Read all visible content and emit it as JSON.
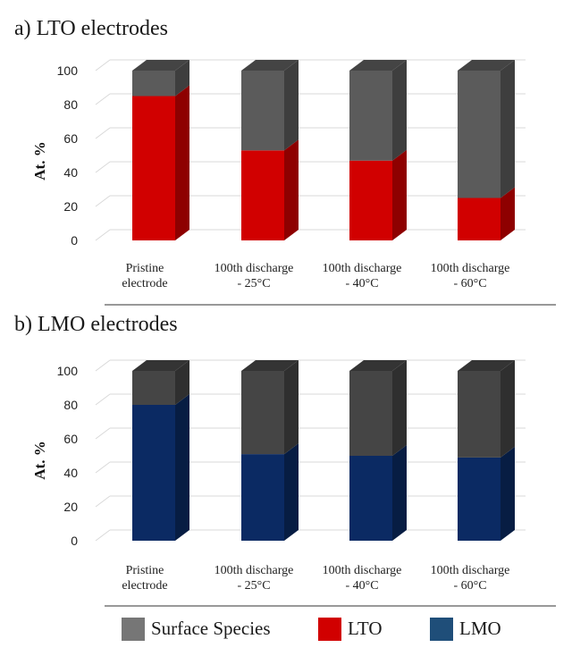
{
  "chart_data": [
    {
      "type": "bar",
      "stacked": true,
      "title": "a) LTO electrodes",
      "ylabel": "At. %",
      "ylim": [
        0,
        100
      ],
      "yticks": [
        0,
        20,
        40,
        60,
        80,
        100
      ],
      "categories": [
        [
          "Pristine",
          "electrode"
        ],
        [
          "100th discharge",
          "- 25°C"
        ],
        [
          "100th discharge",
          "- 40°C"
        ],
        [
          "100th discharge",
          "- 60°C"
        ]
      ],
      "series": [
        {
          "name": "LTO",
          "color": "#d10000",
          "values": [
            85,
            53,
            47,
            25
          ]
        },
        {
          "name": "Surface Species",
          "color": "#5b5b5b",
          "values": [
            15,
            47,
            53,
            75
          ]
        }
      ]
    },
    {
      "type": "bar",
      "stacked": true,
      "title": "b) LMO electrodes",
      "ylabel": "At. %",
      "ylim": [
        0,
        100
      ],
      "yticks": [
        0,
        20,
        40,
        60,
        80,
        100
      ],
      "categories": [
        [
          "Pristine",
          "electrode"
        ],
        [
          "100th discharge",
          "- 25°C"
        ],
        [
          "100th discharge",
          "- 40°C"
        ],
        [
          "100th discharge",
          "- 60°C"
        ]
      ],
      "series": [
        {
          "name": "LMO",
          "color": "#0b2a63",
          "values": [
            80,
            51,
            50,
            49
          ]
        },
        {
          "name": "Surface Species",
          "color": "#454545",
          "values": [
            20,
            49,
            50,
            51
          ]
        }
      ]
    }
  ],
  "legend": {
    "position": "bottom",
    "items": [
      {
        "label": "Surface Species",
        "color": "#767676"
      },
      {
        "label": "LTO",
        "color": "#d10000"
      },
      {
        "label": "LMO",
        "color": "#1f4e79"
      }
    ]
  }
}
